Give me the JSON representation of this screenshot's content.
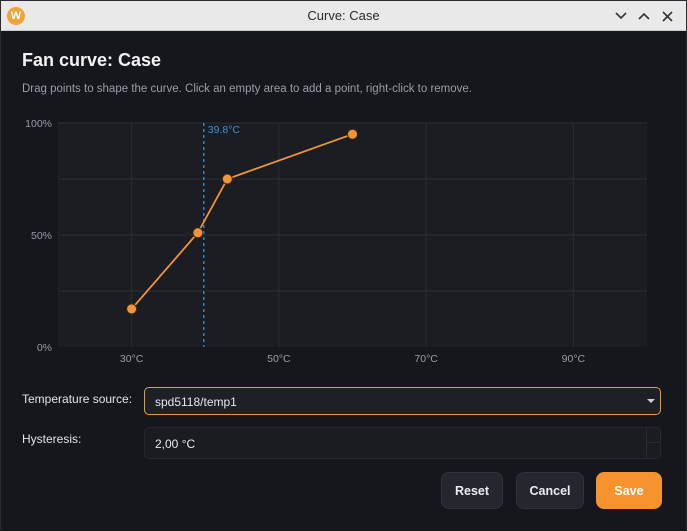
{
  "window": {
    "title": "Curve: Case",
    "app_icon_letter": "W"
  },
  "dialog": {
    "heading": "Fan curve: Case",
    "description": "Drag points to shape the curve. Click an empty area to add a point, right-click to remove."
  },
  "chart_data": {
    "type": "line",
    "y_ticks": [
      "100%",
      "50%",
      "0%"
    ],
    "x_ticks": [
      "30°C",
      "50°C",
      "70°C",
      "90°C"
    ],
    "xlim": [
      20,
      100
    ],
    "ylim": [
      0,
      100
    ],
    "grid": true,
    "series": [
      {
        "x": [
          30,
          39,
          43,
          60
        ],
        "y": [
          17,
          51,
          75,
          95
        ]
      }
    ],
    "marker": {
      "x": 39.8,
      "label": "39.8°C"
    },
    "colors": {
      "line": "#f0953a",
      "marker": "#3a8fd6",
      "plot_bg": "#1b1d23",
      "grid": "#2a2d34"
    }
  },
  "form": {
    "temperature_source_label": "Temperature source:",
    "temperature_source_value": "spd5118/temp1",
    "hysteresis_label": "Hysteresis:",
    "hysteresis_value": "2,00 °C"
  },
  "buttons": {
    "reset": "Reset",
    "cancel": "Cancel",
    "save": "Save"
  },
  "colors": {
    "accent": "#f7932e"
  }
}
